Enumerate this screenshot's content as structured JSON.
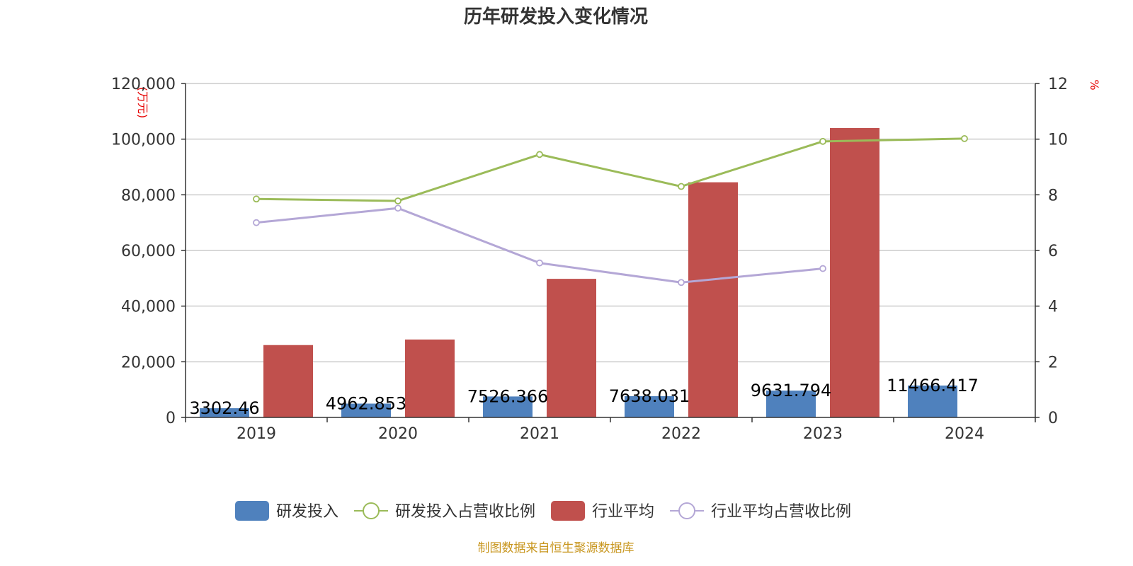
{
  "chart_data": {
    "type": "bar",
    "title": "历年研发投入变化情况",
    "categories": [
      "2019",
      "2020",
      "2021",
      "2022",
      "2023",
      "2024"
    ],
    "y_left": {
      "unit": "(万元)",
      "ylim": [
        0,
        120000
      ],
      "ticks": [
        0,
        20000,
        40000,
        60000,
        80000,
        100000,
        120000
      ],
      "tick_labels": [
        "0",
        "20,000",
        "40,000",
        "60,000",
        "80,000",
        "100,000",
        "120,000"
      ]
    },
    "y_right": {
      "unit": "%",
      "ylim": [
        0,
        12
      ],
      "ticks": [
        0,
        2,
        4,
        6,
        8,
        10,
        12
      ],
      "tick_labels": [
        "0",
        "2",
        "4",
        "6",
        "8",
        "10",
        "12"
      ]
    },
    "series": [
      {
        "name": "研发投入",
        "type": "bar",
        "axis": "left",
        "color": "#4f81bd",
        "values": [
          3302.46,
          4962.853,
          7526.366,
          7638.031,
          9631.794,
          11466.417
        ],
        "labels": [
          "3302.46",
          "4962.853",
          "7526.366",
          "7638.031",
          "9631.794",
          "11466.417"
        ]
      },
      {
        "name": "研发投入占营收比例",
        "type": "line",
        "axis": "right",
        "color": "#9bbb59",
        "values": [
          7.85,
          7.78,
          9.45,
          8.3,
          9.92,
          10.02
        ]
      },
      {
        "name": "行业平均",
        "type": "bar",
        "axis": "left",
        "color": "#c0504d",
        "values": [
          26000,
          28000,
          49800,
          84500,
          104000,
          null
        ]
      },
      {
        "name": "行业平均占营收比例",
        "type": "line",
        "axis": "right",
        "color": "#b4a7d6",
        "values": [
          7.0,
          7.52,
          5.55,
          4.85,
          5.35,
          null
        ]
      }
    ],
    "grid": true,
    "legend": "bottom",
    "source": "制图数据来自恒生聚源数据库"
  }
}
